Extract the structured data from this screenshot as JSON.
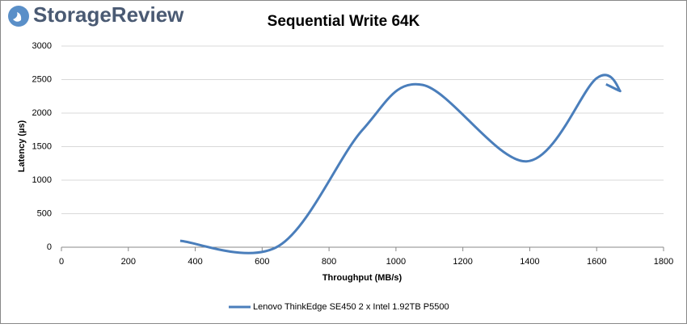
{
  "brand": "StorageReview",
  "chart_data": {
    "type": "line",
    "title": "Sequential Write 64K",
    "x_label": "Throughput (MB/s)",
    "y_label": "Latency (µs)",
    "series": [
      {
        "name": "Lenovo ThinkEdge SE450 2 x Intel 1.92TB P5500",
        "color": "#4a7ebb",
        "x": [
          355,
          650,
          900,
          1080,
          1390,
          1600,
          1670,
          1628
        ],
        "values": [
          95,
          20,
          1750,
          2420,
          1280,
          2520,
          2330,
          2430
        ]
      }
    ],
    "smooth": true,
    "xlim": [
      0,
      1800
    ],
    "xticks": [
      0,
      200,
      400,
      600,
      800,
      1000,
      1200,
      1400,
      1600,
      1800
    ],
    "ylim": [
      0,
      3000
    ],
    "yticks": [
      0,
      500,
      1000,
      1500,
      2000,
      2500,
      3000
    ],
    "grid": true,
    "legend": "bottom"
  }
}
